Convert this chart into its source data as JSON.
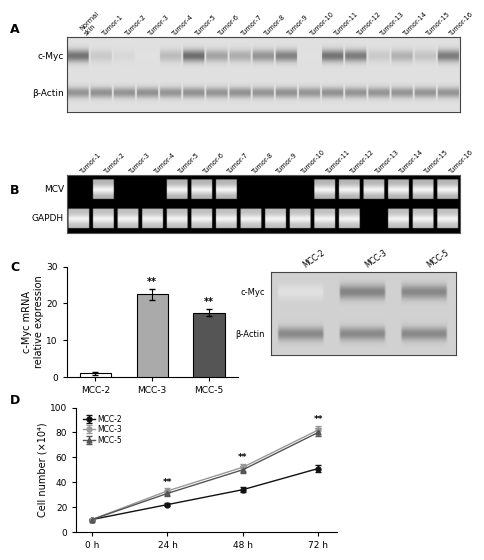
{
  "panel_label_fontsize": 9,
  "section_A": {
    "col_labels": [
      "Normal\nskin",
      "Tumor-1",
      "Tumor-2",
      "Tumor-3",
      "Tumor-4",
      "Tumor-5",
      "Tumor-6",
      "Tumor-7",
      "Tumor-8",
      "Tumor-9",
      "Tumor-10",
      "Tumor-11",
      "Tumor-12",
      "Tumor-13",
      "Tumor-14",
      "Tumor-15",
      "Tumor-16"
    ],
    "row_labels": [
      "c-Myc",
      "β-Actin"
    ],
    "band_color_cMyc": [
      0.88,
      0.28,
      0.18,
      0.12,
      0.38,
      0.92,
      0.55,
      0.48,
      0.65,
      0.78,
      0.12,
      0.88,
      0.82,
      0.28,
      0.45,
      0.32,
      0.82
    ],
    "band_color_bActin": [
      0.82,
      0.85,
      0.82,
      0.85,
      0.82,
      0.85,
      0.82,
      0.85,
      0.82,
      0.85,
      0.82,
      0.85,
      0.82,
      0.82,
      0.82,
      0.82,
      0.82
    ]
  },
  "section_B": {
    "col_labels": [
      "Tumor-1",
      "Tumor-2",
      "Tumor-3",
      "Tumor-4",
      "Tumor-5",
      "Tumor-6",
      "Tumor-7",
      "Tumor-8",
      "Tumor-9",
      "Tumor-10",
      "Tumor-11",
      "Tumor-12",
      "Tumor-13",
      "Tumor-14",
      "Tumor-15",
      "Tumor-16"
    ],
    "row_labels": [
      "MCV",
      "GAPDH"
    ],
    "mcv_present": [
      0,
      1,
      0,
      0,
      1,
      1,
      1,
      0,
      0,
      0,
      1,
      1,
      1,
      1,
      1,
      1
    ],
    "gapdh_present": [
      1,
      1,
      1,
      1,
      1,
      1,
      1,
      1,
      1,
      1,
      1,
      1,
      0,
      1,
      1,
      1
    ]
  },
  "section_C_bar": {
    "categories": [
      "MCC-2",
      "MCC-3",
      "MCC-5"
    ],
    "values": [
      1.0,
      22.5,
      17.5
    ],
    "errors": [
      0.3,
      1.5,
      1.0
    ],
    "bar_colors": [
      "#ffffff",
      "#aaaaaa",
      "#555555"
    ],
    "bar_edgecolor": "#000000",
    "ylabel": "c-Myc mRNA\nrelative expression",
    "ylim": [
      0,
      30
    ],
    "yticks": [
      0,
      10,
      20,
      30
    ],
    "significance": [
      "",
      "**",
      "**"
    ]
  },
  "section_C_blot": {
    "col_labels": [
      "MCC-2",
      "MCC-3",
      "MCC-5"
    ],
    "row_labels": [
      "c-Myc",
      "β-Actin"
    ],
    "cMyc_intensity": [
      0.08,
      0.75,
      0.72
    ],
    "bActin_intensity": [
      0.82,
      0.82,
      0.82
    ]
  },
  "section_D": {
    "timepoints": [
      0,
      24,
      48,
      72
    ],
    "MCC2": [
      10,
      22,
      34,
      51
    ],
    "MCC2_err": [
      0.5,
      1.5,
      2.0,
      2.5
    ],
    "MCC3": [
      10,
      33,
      52,
      82
    ],
    "MCC3_err": [
      0.5,
      2.0,
      3.0,
      3.5
    ],
    "MCC5": [
      10,
      31,
      50,
      80
    ],
    "MCC5_err": [
      0.5,
      1.8,
      2.8,
      3.2
    ],
    "ylabel": "Cell number (×10⁴)",
    "ylim": [
      0,
      100
    ],
    "yticks": [
      0,
      20,
      40,
      60,
      80,
      100
    ],
    "xtick_labels": [
      "0 h",
      "24 h",
      "48 h",
      "72 h"
    ],
    "line_colors": [
      "#111111",
      "#999999",
      "#555555"
    ],
    "markers": [
      "o",
      "o",
      "^"
    ],
    "legend_labels": [
      "MCC-2",
      "MCC-3",
      "MCC-5"
    ]
  },
  "figure_bg": "#ffffff",
  "axes_bg": "#ffffff",
  "tick_fontsize": 6.5,
  "label_fontsize": 7.0
}
